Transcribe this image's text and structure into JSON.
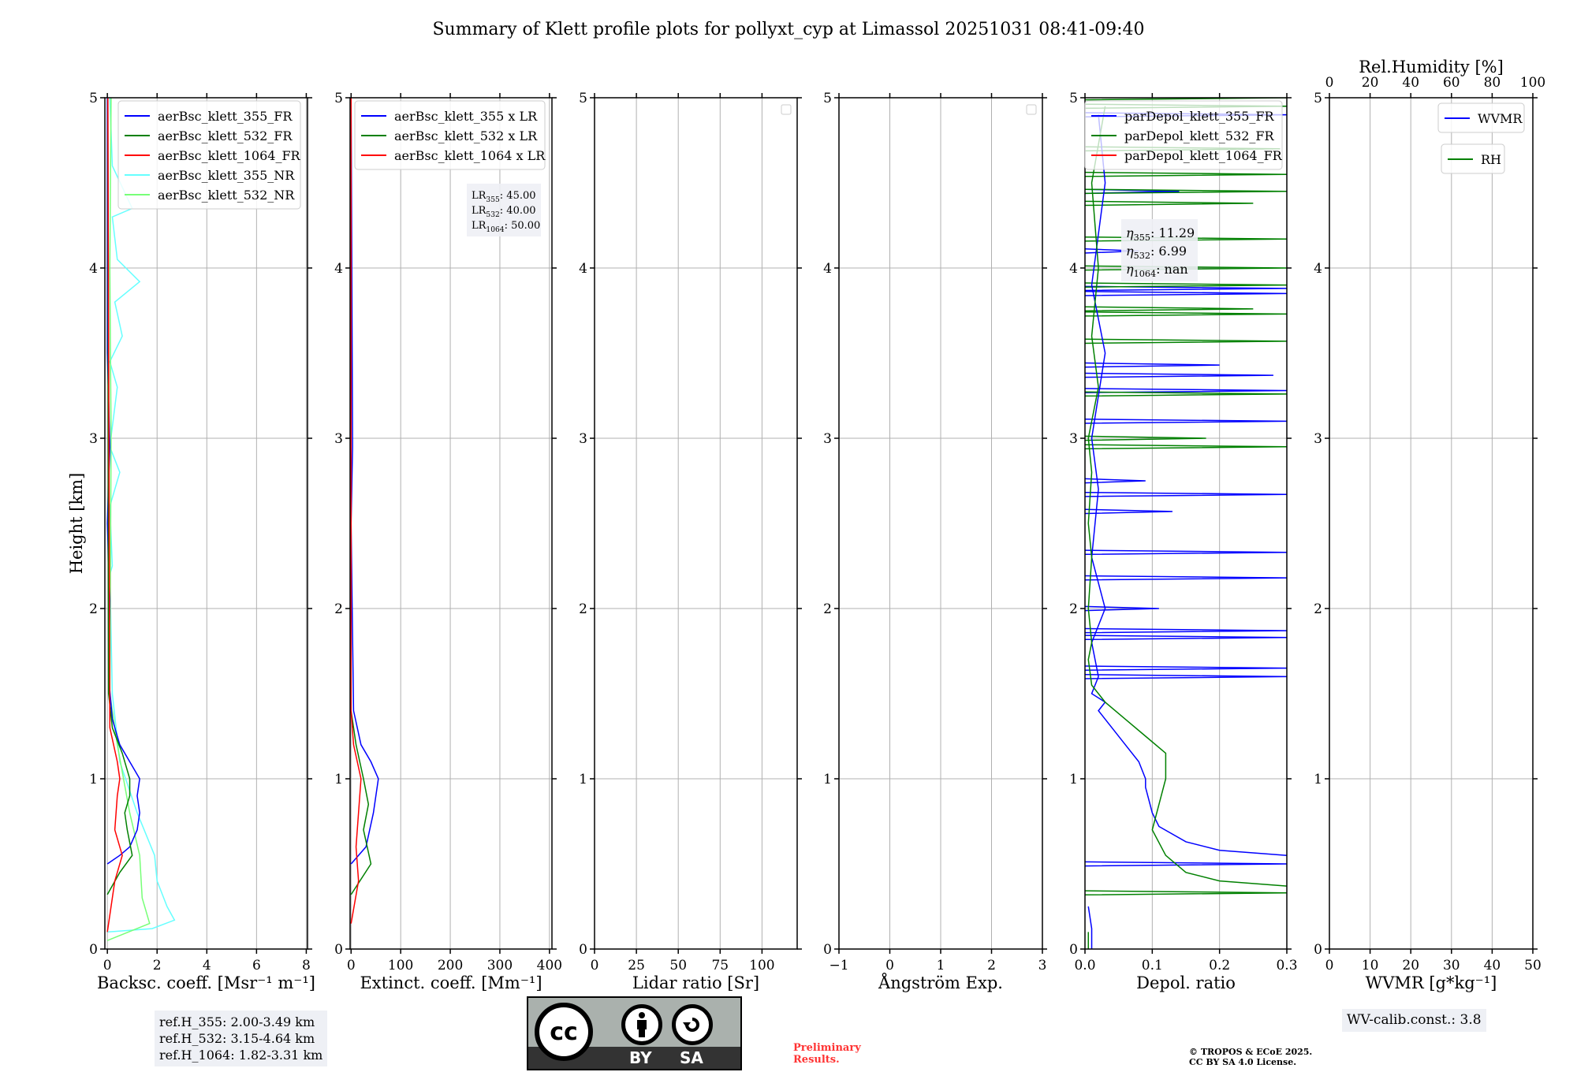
{
  "title": "Summary of Klett profile plots for pollyxt_cyp at Limassol 20251031 08:41-09:40",
  "ylabel": "Height [km]",
  "yticks": [
    "0",
    "1",
    "2",
    "3",
    "4",
    "5"
  ],
  "ref_heights": [
    "ref.H_355: 2.00-3.49 km",
    "ref.H_532: 3.15-4.64 km",
    "ref.H_1064: 1.82-3.31 km"
  ],
  "license": {
    "icon": "cc-by-sa-logo",
    "cc": "cc",
    "by": "BY",
    "sa": "SA",
    "by_glyph": "person-icon",
    "sa_glyph": "share-alike-icon"
  },
  "preliminary": [
    "Preliminary",
    "Results."
  ],
  "copyright": [
    "© TROPOS & ECoE 2025.",
    "CC BY SA 4.0 License."
  ],
  "wv_calib": "WV-calib.const.: 3.8",
  "colors": {
    "blue": "#0000ff",
    "green": "#008000",
    "red": "#ff0000",
    "cyan": "#66ffff",
    "lightgreen": "#77ff77",
    "grid": "#b0b0b0"
  },
  "chart_data": [
    {
      "type": "line",
      "xlabel": "Backsc. coeff. [Msr⁻¹ m⁻¹]",
      "xlim": [
        -0.1,
        8.05
      ],
      "xtick_values": [
        0,
        2,
        4,
        6,
        8
      ],
      "xtick_labels": [
        "0",
        "2",
        "4",
        "6",
        "8"
      ],
      "ylim": [
        0,
        5
      ],
      "legend": [
        "aerBsc_klett_355_FR",
        "aerBsc_klett_532_FR",
        "aerBsc_klett_1064_FR",
        "aerBsc_klett_355_NR",
        "aerBsc_klett_532_NR"
      ],
      "series": [
        {
          "name": "aerBsc_klett_355_NR",
          "color": "#66ffff",
          "points": [
            [
              0,
              0.1
            ],
            [
              1.8,
              0.12
            ],
            [
              2.7,
              0.17
            ],
            [
              2.4,
              0.25
            ],
            [
              2.0,
              0.4
            ],
            [
              1.9,
              0.55
            ],
            [
              1.2,
              0.8
            ],
            [
              0.5,
              1.1
            ],
            [
              0.2,
              1.5
            ],
            [
              0.1,
              2.2
            ],
            [
              0.2,
              2.25
            ],
            [
              0.1,
              2.6
            ],
            [
              0.5,
              2.8
            ],
            [
              0.1,
              2.95
            ],
            [
              0.4,
              3.3
            ],
            [
              0.1,
              3.45
            ],
            [
              0.6,
              3.6
            ],
            [
              0.3,
              3.8
            ],
            [
              1.3,
              3.92
            ],
            [
              0.4,
              4.05
            ],
            [
              0.2,
              4.3
            ],
            [
              1.0,
              4.35
            ],
            [
              0.2,
              4.6
            ],
            [
              0.1,
              5
            ]
          ]
        },
        {
          "name": "aerBsc_klett_532_NR",
          "color": "#77ff77",
          "points": [
            [
              0,
              0.05
            ],
            [
              1.7,
              0.15
            ],
            [
              1.4,
              0.3
            ],
            [
              1.3,
              0.55
            ],
            [
              0.9,
              0.8
            ],
            [
              0.4,
              1.2
            ],
            [
              0.1,
              1.5
            ],
            [
              0.15,
              3
            ],
            [
              0.1,
              4
            ],
            [
              0.15,
              5
            ]
          ]
        },
        {
          "name": "aerBsc_klett_355_FR",
          "color": "#0000ff",
          "points": [
            [
              0,
              0.5
            ],
            [
              0.5,
              0.55
            ],
            [
              0.9,
              0.6
            ],
            [
              1.2,
              0.7
            ],
            [
              1.3,
              0.8
            ],
            [
              1.2,
              0.9
            ],
            [
              1.3,
              1.0
            ],
            [
              0.9,
              1.1
            ],
            [
              0.5,
              1.2
            ],
            [
              0.2,
              1.35
            ],
            [
              0.05,
              1.6
            ],
            [
              0.1,
              2.05
            ],
            [
              0,
              2.5
            ],
            [
              0.1,
              2.95
            ],
            [
              0,
              3.5
            ],
            [
              0,
              5
            ]
          ]
        },
        {
          "name": "aerBsc_klett_532_FR",
          "color": "#008000",
          "points": [
            [
              0,
              0.32
            ],
            [
              0.5,
              0.45
            ],
            [
              1.0,
              0.55
            ],
            [
              0.8,
              0.7
            ],
            [
              0.7,
              0.8
            ],
            [
              0.9,
              0.9
            ],
            [
              0.9,
              1.0
            ],
            [
              0.6,
              1.15
            ],
            [
              0.2,
              1.3
            ],
            [
              0.05,
              1.5
            ],
            [
              0.02,
              5
            ]
          ]
        },
        {
          "name": "aerBsc_klett_1064_FR",
          "color": "#ff0000",
          "points": [
            [
              0,
              0.1
            ],
            [
              0.3,
              0.4
            ],
            [
              0.6,
              0.55
            ],
            [
              0.3,
              0.7
            ],
            [
              0.4,
              0.9
            ],
            [
              0.5,
              1.0
            ],
            [
              0.4,
              1.1
            ],
            [
              0.1,
              1.3
            ],
            [
              0.02,
              5
            ]
          ]
        }
      ],
      "legend_colors": [
        "#0000ff",
        "#008000",
        "#ff0000",
        "#66ffff",
        "#77ff77"
      ]
    },
    {
      "type": "line",
      "xlabel": "Extinct. coeff. [Mm⁻¹]",
      "xlim": [
        -2,
        405
      ],
      "xtick_values": [
        0,
        100,
        200,
        300,
        400
      ],
      "xtick_labels": [
        "0",
        "100",
        "200",
        "300",
        "400"
      ],
      "ylim": [
        0,
        5
      ],
      "legend": [
        "aerBsc_klett_355 x LR",
        "aerBsc_klett_532 x LR",
        "aerBsc_klett_1064 x LR"
      ],
      "legend_colors": [
        "#0000ff",
        "#008000",
        "#ff0000"
      ],
      "annotation": [
        {
          "label": "LR",
          "sub": "355",
          "value": ": 45.00"
        },
        {
          "label": "LR",
          "sub": "532",
          "value": ": 40.00"
        },
        {
          "label": "LR",
          "sub": "1064",
          "value": ": 50.00"
        }
      ],
      "series": [
        {
          "name": "aerBsc_klett_355 x LR",
          "color": "#0000ff",
          "points": [
            [
              0,
              0.5
            ],
            [
              30,
              0.6
            ],
            [
              45,
              0.8
            ],
            [
              55,
              1.0
            ],
            [
              40,
              1.1
            ],
            [
              20,
              1.2
            ],
            [
              5,
              1.4
            ],
            [
              2,
              2.05
            ],
            [
              0,
              2.5
            ],
            [
              3,
              2.95
            ],
            [
              0,
              5
            ]
          ]
        },
        {
          "name": "aerBsc_klett_532 x LR",
          "color": "#008000",
          "points": [
            [
              0,
              0.32
            ],
            [
              40,
              0.5
            ],
            [
              25,
              0.7
            ],
            [
              35,
              0.85
            ],
            [
              25,
              1.0
            ],
            [
              10,
              1.2
            ],
            [
              0,
              1.4
            ],
            [
              0,
              5
            ]
          ]
        },
        {
          "name": "aerBsc_klett_1064 x LR",
          "color": "#ff0000",
          "points": [
            [
              0,
              0.15
            ],
            [
              15,
              0.4
            ],
            [
              10,
              0.6
            ],
            [
              15,
              0.8
            ],
            [
              20,
              1.0
            ],
            [
              5,
              1.2
            ],
            [
              0,
              1.4
            ],
            [
              0,
              5
            ]
          ]
        }
      ]
    },
    {
      "type": "line",
      "xlabel": "Lidar ratio [Sr]",
      "xlim": [
        0,
        121
      ],
      "xtick_values": [
        0,
        25,
        50,
        75,
        100
      ],
      "xtick_labels": [
        "0",
        "25",
        "50",
        "75",
        "100"
      ],
      "ylim": [
        0,
        5
      ],
      "legend": [],
      "empty_legend": true,
      "series": []
    },
    {
      "type": "line",
      "xlabel": "Ångström Exp.",
      "xlim": [
        -1,
        3
      ],
      "xtick_values": [
        -1,
        0,
        1,
        2,
        3
      ],
      "xtick_labels": [
        "−1",
        "0",
        "1",
        "2",
        "3"
      ],
      "ylim": [
        0,
        5
      ],
      "legend": [],
      "empty_legend": true,
      "series": []
    },
    {
      "type": "line",
      "xlabel": "Depol. ratio",
      "xlim": [
        0,
        0.3
      ],
      "xtick_values": [
        0,
        0.1,
        0.2,
        0.3
      ],
      "xtick_labels": [
        "0.0",
        "0.1",
        "0.2",
        "0.3"
      ],
      "ylim": [
        0,
        5
      ],
      "legend": [
        "parDepol_klett_355_FR",
        "parDepol_klett_532_FR",
        "parDepol_klett_1064_FR"
      ],
      "legend_colors": [
        "#0000ff",
        "#008000",
        "#ff0000"
      ],
      "annotation": [
        {
          "label": "η",
          "sub": "355",
          "value": ": 11.29"
        },
        {
          "label": "η",
          "sub": "532",
          "value": ": 6.99"
        },
        {
          "label": "η",
          "sub": "1064",
          "value": ": nan"
        }
      ],
      "series": [
        {
          "name": "parDepol_klett_355_FR",
          "color": "#0000ff",
          "points": [
            [
              0.01,
              0
            ],
            [
              0.01,
              0.12
            ],
            [
              0.005,
              0.25
            ]
          ]
        },
        {
          "name": "parDepol_klett_355_FR",
          "color": "#0000ff",
          "points": [
            [
              0.3,
              0.55
            ],
            [
              0.2,
              0.58
            ],
            [
              0.15,
              0.63
            ],
            [
              0.11,
              0.72
            ],
            [
              0.1,
              0.8
            ],
            [
              0.09,
              0.95
            ],
            [
              0.09,
              1.0
            ],
            [
              0.08,
              1.1
            ],
            [
              0.06,
              1.2
            ],
            [
              0.04,
              1.3
            ],
            [
              0.02,
              1.4
            ],
            [
              0.03,
              1.45
            ],
            [
              0.01,
              1.5
            ],
            [
              0.02,
              1.6
            ],
            [
              0.01,
              1.8
            ],
            [
              0.03,
              2.0
            ],
            [
              0.01,
              2.3
            ],
            [
              0.02,
              2.7
            ],
            [
              0.01,
              3.0
            ],
            [
              0.03,
              3.5
            ],
            [
              0.01,
              3.9
            ],
            [
              0.03,
              4.5
            ],
            [
              0.02,
              4.9
            ]
          ]
        },
        {
          "name": "parDepol_klett_532_FR",
          "color": "#008000",
          "points": [
            [
              0.005,
              0
            ],
            [
              0.005,
              0.1
            ]
          ]
        },
        {
          "name": "parDepol_klett_532_FR",
          "color": "#008000",
          "points": [
            [
              0.3,
              0.37
            ],
            [
              0.2,
              0.4
            ],
            [
              0.15,
              0.45
            ],
            [
              0.12,
              0.55
            ],
            [
              0.1,
              0.7
            ],
            [
              0.11,
              0.85
            ],
            [
              0.12,
              1.0
            ],
            [
              0.12,
              1.15
            ],
            [
              0.09,
              1.25
            ],
            [
              0.06,
              1.35
            ],
            [
              0.03,
              1.45
            ],
            [
              0.01,
              1.55
            ],
            [
              0.005,
              1.7
            ],
            [
              0.01,
              1.8
            ],
            [
              0.005,
              2.0
            ],
            [
              0.01,
              2.3
            ],
            [
              0.005,
              2.5
            ],
            [
              0.01,
              2.8
            ],
            [
              0.005,
              3.0
            ],
            [
              0.02,
              3.3
            ],
            [
              0.01,
              3.6
            ],
            [
              0.02,
              4.0
            ],
            [
              0.01,
              4.5
            ],
            [
              0.03,
              4.95
            ]
          ]
        }
      ],
      "spikes": [
        {
          "color": "#0000ff",
          "base": 0.0,
          "items": [
            [
              0.5,
              0.3
            ],
            [
              1.6,
              0.3
            ],
            [
              1.65,
              0.3
            ],
            [
              1.83,
              0.3
            ],
            [
              1.87,
              0.3
            ],
            [
              2.0,
              0.11
            ],
            [
              2.18,
              0.3
            ],
            [
              2.33,
              0.3
            ],
            [
              2.57,
              0.13
            ],
            [
              2.67,
              0.3
            ],
            [
              2.75,
              0.09
            ],
            [
              3.1,
              0.3
            ],
            [
              3.28,
              0.3
            ],
            [
              3.37,
              0.28
            ],
            [
              3.43,
              0.2
            ],
            [
              3.85,
              0.3
            ],
            [
              3.88,
              0.3
            ],
            [
              4.1,
              0.08
            ],
            [
              4.45,
              0.14
            ],
            [
              4.9,
              0.3
            ]
          ]
        },
        {
          "color": "#008000",
          "base": 0.0,
          "items": [
            [
              0.33,
              0.3
            ],
            [
              2.95,
              0.3
            ],
            [
              3.0,
              0.18
            ],
            [
              3.26,
              0.3
            ],
            [
              3.57,
              0.3
            ],
            [
              3.73,
              0.3
            ],
            [
              3.76,
              0.25
            ],
            [
              3.9,
              0.3
            ],
            [
              4.0,
              0.3
            ],
            [
              4.17,
              0.3
            ],
            [
              4.38,
              0.25
            ],
            [
              4.45,
              0.3
            ],
            [
              4.55,
              0.3
            ],
            [
              4.7,
              0.29
            ],
            [
              4.95,
              0.3
            ],
            [
              5.0,
              0.3
            ]
          ]
        }
      ]
    },
    {
      "type": "line",
      "xlabel": "WVMR [g*kg⁻¹]",
      "xlim": [
        0,
        50
      ],
      "xtick_values": [
        0,
        10,
        20,
        30,
        40,
        50
      ],
      "xtick_labels": [
        "0",
        "10",
        "20",
        "30",
        "40",
        "50"
      ],
      "ylim": [
        0,
        5
      ],
      "top_xlabel": "Rel.Humidity [%]",
      "top_xlim": [
        0,
        100
      ],
      "top_xtick_values": [
        0,
        20,
        40,
        60,
        80,
        100
      ],
      "top_xtick_labels": [
        "0",
        "20",
        "40",
        "60",
        "80",
        "100"
      ],
      "legend": [
        "WVMR"
      ],
      "legend_colors": [
        "#0000ff"
      ],
      "legend2": [
        "RH"
      ],
      "legend2_colors": [
        "#008000"
      ],
      "series": []
    }
  ]
}
